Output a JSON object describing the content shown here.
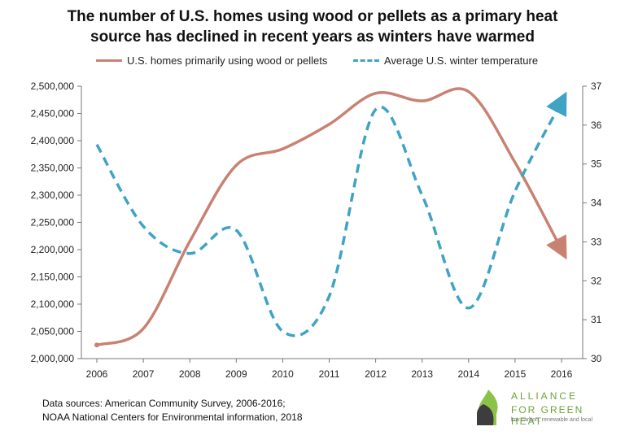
{
  "chart_data": {
    "type": "line",
    "title_line1": "The number of U.S. homes using wood or pellets as a primary heat",
    "title_line2": "source has declined in recent years as winters have warmed",
    "categories": [
      "2006",
      "2007",
      "2008",
      "2009",
      "2010",
      "2011",
      "2012",
      "2013",
      "2014",
      "2015",
      "2016"
    ],
    "series": [
      {
        "name": "U.S. homes primarily using wood or pellets",
        "axis": "left",
        "style": "solid",
        "color": "#c98272",
        "values": [
          2025000,
          2055000,
          2215000,
          2355000,
          2385000,
          2430000,
          2487000,
          2473000,
          2490000,
          2360000,
          2200000
        ]
      },
      {
        "name": "Average U.S. winter temperature",
        "axis": "right",
        "style": "dashed",
        "color": "#3fa3c4",
        "values": [
          35.5,
          33.4,
          32.7,
          33.3,
          30.7,
          31.6,
          36.4,
          34.2,
          31.3,
          34.3,
          36.6
        ]
      }
    ],
    "left_axis": {
      "ylim": [
        2000000,
        2500000
      ],
      "ticks": [
        "2,000,000",
        "2,050,000",
        "2,100,000",
        "2,150,000",
        "2,200,000",
        "2,250,000",
        "2,300,000",
        "2,350,000",
        "2,400,000",
        "2,450,000",
        "2,500,000"
      ]
    },
    "right_axis": {
      "ylim": [
        30,
        37
      ],
      "ticks": [
        "30",
        "31",
        "32",
        "33",
        "34",
        "35",
        "36",
        "37"
      ]
    },
    "grid": false,
    "legend_position": "top"
  },
  "source_line1": "Data sources: American Community Survey, 2006-2016;",
  "source_line2": "NOAA National Centers for Environmental information, 2018",
  "logo": {
    "name_line1": "ALLIANCE",
    "name_line2": "FOR GREEN HEAT",
    "tagline": "low carbon, renewable and local",
    "icon": "flame-leaf-icon",
    "green": "#7cb342",
    "dark": "#3d3d3d"
  }
}
